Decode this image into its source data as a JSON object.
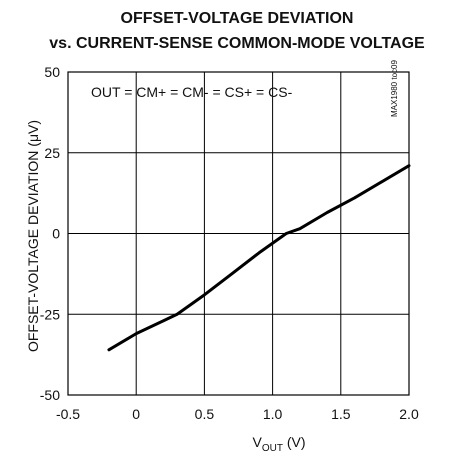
{
  "colors": {
    "background": "#ffffff",
    "foreground": "#111111",
    "grid": "#000000",
    "curve": "#000000"
  },
  "chart_data": {
    "type": "line",
    "title": "OFFSET-VOLTAGE DEVIATION",
    "subtitle": "vs. CURRENT-SENSE COMMON-MODE VOLTAGE",
    "xlabel": {
      "main": "V",
      "subscript": "OUT",
      "unit": " (V)"
    },
    "ylabel": "OFFSET-VOLTAGE DEVIATION (μV)",
    "annotation": "OUT = CM+ = CM- = CS+ = CS-",
    "figure_code": "MAX1980 toc09",
    "xlim": [
      -0.5,
      2.0
    ],
    "ylim": [
      -50,
      50
    ],
    "xticks": [
      -0.5,
      0,
      0.5,
      1.0,
      1.5,
      2.0
    ],
    "xtick_labels": [
      "-0.5",
      "0",
      "0.5",
      "1.0",
      "1.5",
      "2.0"
    ],
    "yticks": [
      -50,
      -25,
      0,
      25,
      50
    ],
    "ytick_labels": [
      "-50",
      "-25",
      "0",
      "25",
      "50"
    ],
    "grid": true,
    "series": [
      {
        "x": [
          -0.2,
          0.0,
          0.2,
          0.3,
          0.5,
          0.7,
          0.9,
          1.1,
          1.2,
          1.4,
          1.6,
          1.8,
          2.0
        ],
        "values": [
          -36,
          -31,
          -27,
          -25,
          -19,
          -12.5,
          -6,
          0,
          1.5,
          6.5,
          11,
          16,
          21
        ]
      }
    ]
  }
}
